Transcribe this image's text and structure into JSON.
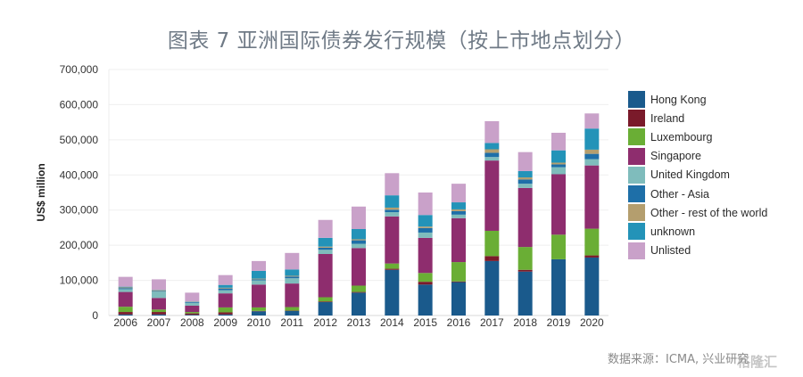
{
  "title": "图表 7 亚洲国际债券发行规模（按上市地点划分）",
  "source": "数据来源：ICMA, 兴业研究",
  "watermark": "格隆汇",
  "chart_data": {
    "type": "bar",
    "stacked": true,
    "title": "图表 7 亚洲国际债券发行规模（按上市地点划分）",
    "xlabel": "",
    "ylabel": "US$ million",
    "ylim": [
      0,
      700000
    ],
    "yticks": [
      0,
      100000,
      200000,
      300000,
      400000,
      500000,
      600000,
      700000
    ],
    "ytick_labels": [
      "0",
      "100,000",
      "200,000",
      "300,000",
      "400,000",
      "500,000",
      "600,000",
      "700,000"
    ],
    "grid": true,
    "legend_position": "right",
    "categories": [
      "2006",
      "2007",
      "2008",
      "2009",
      "2010",
      "2011",
      "2012",
      "2013",
      "2014",
      "2015",
      "2016",
      "2017",
      "2018",
      "2019",
      "2020"
    ],
    "series": [
      {
        "name": "Hong Kong",
        "color": "#1a5a8c",
        "values": [
          3000,
          3000,
          2000,
          3000,
          12000,
          13000,
          38000,
          65000,
          130000,
          88000,
          95000,
          155000,
          125000,
          160000,
          165000
        ]
      },
      {
        "name": "Ireland",
        "color": "#7a1a2a",
        "values": [
          7000,
          7000,
          4000,
          6000,
          1000,
          1000,
          2000,
          2000,
          3000,
          8000,
          2000,
          14000,
          5000,
          0,
          6000
        ]
      },
      {
        "name": "Luxembourg",
        "color": "#6aae35",
        "values": [
          15000,
          7000,
          4000,
          14000,
          10000,
          10000,
          12000,
          18000,
          15000,
          25000,
          55000,
          72000,
          65000,
          70000,
          76000
        ]
      },
      {
        "name": "Singapore",
        "color": "#8e2d6e",
        "values": [
          42000,
          33000,
          18000,
          40000,
          65000,
          67000,
          123000,
          107000,
          134000,
          100000,
          125000,
          200000,
          168000,
          172000,
          180000
        ]
      },
      {
        "name": "United Kingdom",
        "color": "#7fbcbc",
        "values": [
          8000,
          18000,
          8000,
          9000,
          12000,
          15000,
          12000,
          12000,
          12000,
          15000,
          10000,
          10000,
          12000,
          20000,
          18000
        ]
      },
      {
        "name": "Other - Asia",
        "color": "#1e6fa8",
        "values": [
          3000,
          2000,
          2000,
          5000,
          3000,
          5000,
          6000,
          10000,
          7000,
          13000,
          10000,
          12000,
          12000,
          8000,
          15000
        ]
      },
      {
        "name": "Other - rest of the world",
        "color": "#b49e6e",
        "values": [
          2000,
          2000,
          1000,
          2000,
          2000,
          2000,
          3000,
          3000,
          6000,
          4000,
          5000,
          10000,
          6000,
          5000,
          12000
        ]
      },
      {
        "name": "unknown",
        "color": "#2393b8",
        "values": [
          2000,
          1000,
          1000,
          8000,
          22000,
          18000,
          25000,
          29000,
          35000,
          33000,
          20000,
          18000,
          18000,
          35000,
          60000
        ]
      },
      {
        "name": "Unlisted",
        "color": "#c9a1c9",
        "values": [
          28000,
          30000,
          25000,
          28000,
          28000,
          47000,
          51000,
          64000,
          63000,
          64000,
          53000,
          62000,
          54000,
          50000,
          43000
        ]
      }
    ]
  }
}
